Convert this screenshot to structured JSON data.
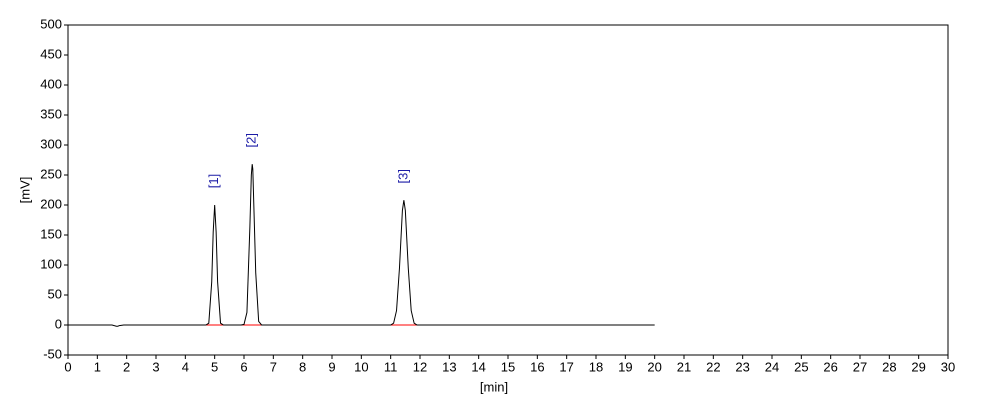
{
  "chart_data": {
    "type": "line",
    "x_label": "[min]",
    "y_label": "[mV]",
    "x": [
      0,
      1.5,
      1.65,
      1.7,
      1.75,
      1.9,
      4.6,
      4.7,
      4.8,
      4.9,
      4.95,
      5.0,
      5.05,
      5.1,
      5.2,
      5.3,
      5.5,
      5.9,
      6.0,
      6.1,
      6.2,
      6.25,
      6.28,
      6.3,
      6.4,
      6.5,
      6.6,
      6.8,
      10.9,
      11.0,
      11.1,
      11.2,
      11.3,
      11.4,
      11.45,
      11.5,
      11.6,
      11.7,
      11.8,
      11.9,
      12.5,
      20
    ],
    "series": [
      {
        "color": "#000000",
        "values": [
          0,
          0,
          -2,
          -2,
          -1,
          0,
          0,
          0,
          3,
          72,
          155,
          200,
          155,
          72,
          3,
          0,
          0,
          0,
          1,
          21,
          163,
          250,
          268,
          260,
          87,
          6,
          0,
          0,
          0,
          0,
          3,
          24,
          95,
          191,
          208,
          191,
          95,
          24,
          3,
          0,
          0,
          0
        ]
      }
    ],
    "baselines": [
      [
        4.6,
        5.4
      ],
      [
        5.9,
        8.2
      ],
      [
        10.9,
        13.0
      ]
    ],
    "baseline_color": "#ff0000",
    "annotations": [
      {
        "text": "[1]",
        "x": 5.0
      },
      {
        "text": "[2]",
        "x": 6.28
      },
      {
        "text": "[3]",
        "x": 11.45
      }
    ],
    "annotation_color": "#1a1aa6",
    "xlim": [
      0,
      30
    ],
    "ylim": [
      -50,
      500
    ],
    "xticks": [
      0,
      1,
      2,
      3,
      4,
      5,
      6,
      7,
      8,
      9,
      10,
      11,
      12,
      13,
      14,
      15,
      16,
      17,
      18,
      19,
      20,
      21,
      22,
      23,
      24,
      25,
      26,
      27,
      28,
      29,
      30
    ],
    "yticks": [
      -50,
      0,
      50,
      100,
      150,
      200,
      250,
      300,
      350,
      400,
      450,
      500
    ]
  }
}
